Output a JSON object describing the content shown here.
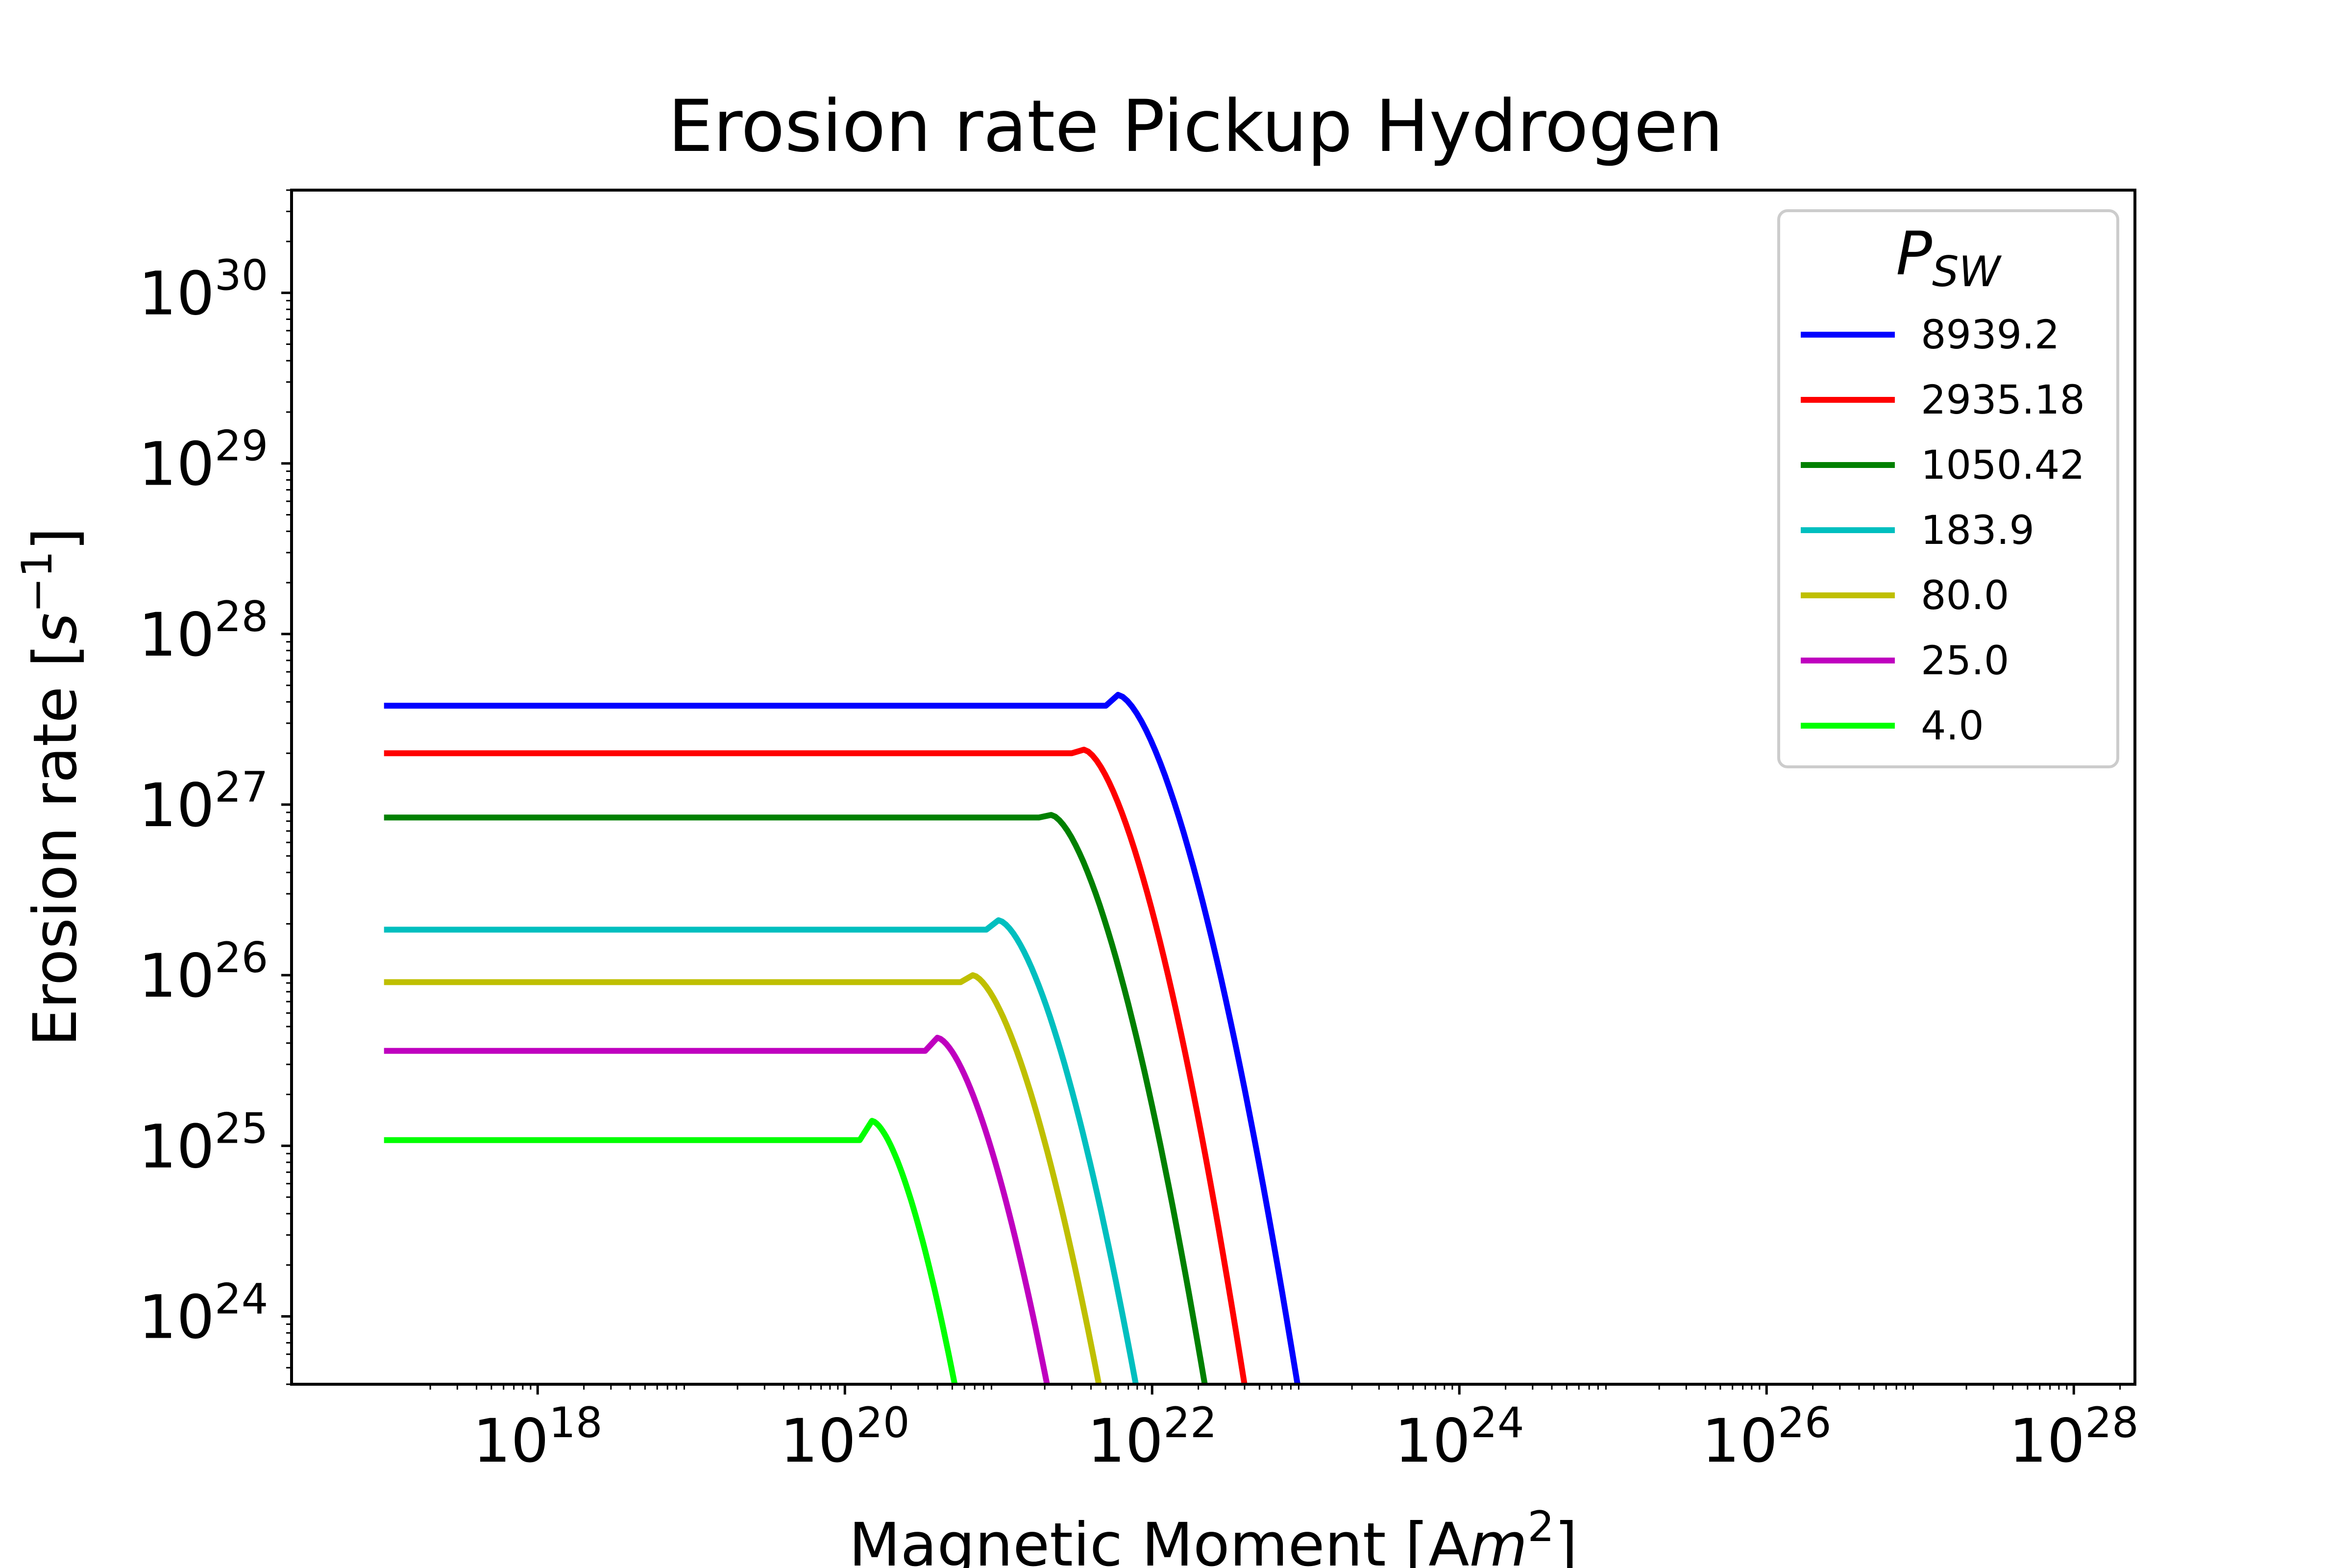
{
  "chart_data": {
    "type": "line",
    "title": "Erosion rate Pickup Hydrogen",
    "xlabel": "Magnetic Moment [Am²]",
    "ylabel": "Erosion rate [s⁻¹]",
    "x_scale": "log",
    "y_scale": "log",
    "xlim": [
      2.5e+16,
      2.5e+28
    ],
    "ylim": [
      4e+23,
      4e+30
    ],
    "x_ticks": [
      {
        "value": 1e+18,
        "base": "10",
        "exp": "18"
      },
      {
        "value": 1e+20,
        "base": "10",
        "exp": "20"
      },
      {
        "value": 1e+22,
        "base": "10",
        "exp": "22"
      },
      {
        "value": 1e+24,
        "base": "10",
        "exp": "24"
      },
      {
        "value": 1e+26,
        "base": "10",
        "exp": "26"
      },
      {
        "value": 1e+28,
        "base": "10",
        "exp": "28"
      }
    ],
    "y_ticks": [
      {
        "value": 1e+24,
        "base": "10",
        "exp": "24"
      },
      {
        "value": 1e+25,
        "base": "10",
        "exp": "25"
      },
      {
        "value": 1e+26,
        "base": "10",
        "exp": "26"
      },
      {
        "value": 1e+27,
        "base": "10",
        "exp": "27"
      },
      {
        "value": 1e+28,
        "base": "10",
        "exp": "28"
      },
      {
        "value": 1e+29,
        "base": "10",
        "exp": "29"
      },
      {
        "value": 1e+30,
        "base": "10",
        "exp": "30"
      }
    ],
    "grid": false,
    "legend": {
      "title": "P_SW",
      "title_main": "P",
      "title_sub": "SW",
      "placement": "top-right"
    },
    "series": [
      {
        "name": "8939.2",
        "color": "#0000ff",
        "plateau": 3.8e+27,
        "x_peak": 6e+21,
        "y_peak": 4.4e+27,
        "x_drop": 1e+23
      },
      {
        "name": "2935.18",
        "color": "#ff0000",
        "plateau": 2e+27,
        "x_peak": 3.6e+21,
        "y_peak": 2.1e+27,
        "x_drop": 4.5e+22
      },
      {
        "name": "1050.42",
        "color": "#008000",
        "plateau": 8.4e+26,
        "x_peak": 2.2e+21,
        "y_peak": 8.7e+26,
        "x_drop": 2.5e+22
      },
      {
        "name": "183.9",
        "color": "#00bfbf",
        "plateau": 1.85e+26,
        "x_peak": 1e+21,
        "y_peak": 2.1e+26,
        "x_drop": 9e+21
      },
      {
        "name": "80.0",
        "color": "#bfbf00",
        "plateau": 9.1e+25,
        "x_peak": 6.8e+20,
        "y_peak": 1e+26,
        "x_drop": 5.2e+21
      },
      {
        "name": "25.0",
        "color": "#bf00bf",
        "plateau": 3.6e+25,
        "x_peak": 4e+20,
        "y_peak": 4.3e+25,
        "x_drop": 2.4e+21
      },
      {
        "name": "4.0",
        "color": "#00ff00",
        "plateau": 1.08e+25,
        "x_peak": 1.5e+20,
        "y_peak": 1.4e+25,
        "x_drop": 6e+20
      }
    ],
    "x_start": 1e+17
  }
}
